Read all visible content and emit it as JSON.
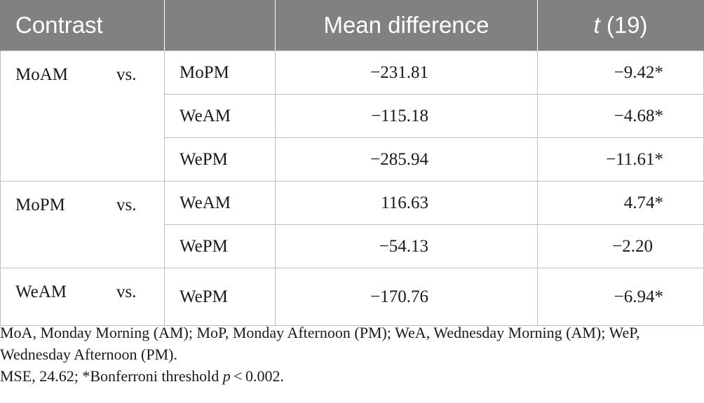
{
  "table": {
    "headers": {
      "contrast": "Contrast",
      "blank": "",
      "mean": "Mean difference",
      "t_symbol": "t",
      "t_df": " (19)"
    },
    "groups": [
      {
        "name": "MoAM",
        "vs": "vs.",
        "rows": [
          {
            "condition": "MoPM",
            "mean": "−231.81",
            "t": "−9.42*"
          },
          {
            "condition": "WeAM",
            "mean": "−115.18",
            "t": "−4.68*"
          },
          {
            "condition": "WePM",
            "mean": "−285.94",
            "t": "−11.61*"
          }
        ]
      },
      {
        "name": "MoPM",
        "vs": "vs.",
        "rows": [
          {
            "condition": "WeAM",
            "mean": "116.63",
            "t": "4.74*"
          },
          {
            "condition": "WePM",
            "mean": "−54.13",
            "t": "−2.20"
          }
        ]
      },
      {
        "name": "WeAM",
        "vs": "vs.",
        "rows": [
          {
            "condition": "WePM",
            "mean": "−170.76",
            "t": "−6.94*"
          }
        ]
      }
    ]
  },
  "notes": {
    "abbreviations": "MoA, Monday Morning (AM); MoP, Monday Afternoon (PM); WeA, Wednesday Morning (AM); WeP, Wednesday Afternoon (PM).",
    "mse_prefix": "MSE, 24.62; *Bonferroni threshold ",
    "p_symbol": "p",
    "mse_suffix": " < 0.002."
  }
}
